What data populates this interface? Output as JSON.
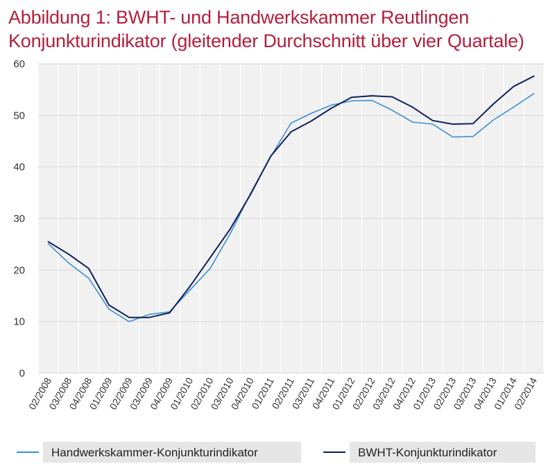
{
  "title_line1": "Abbildung 1: BWHT- und Handwerkskammer  Reutlingen",
  "title_line2": "Konjunkturindikator (gleitender Durchschnitt über vier Quartale)",
  "colors": {
    "title": "#b41f3d",
    "series1": "#3a8fd0",
    "series2": "#101f5a",
    "grid": "#d8d8d8",
    "plot_bg": "#f1f1f2",
    "legend_bg": "#e6e6e6"
  },
  "chart_data": {
    "type": "line",
    "categories": [
      "02/2008",
      "03/2008",
      "04/2008",
      "01/2009",
      "02/2009",
      "03/2009",
      "04/2009",
      "01/2010",
      "02/2010",
      "03/2010",
      "04/2010",
      "01/2011",
      "02/2011",
      "03/2011",
      "04/2011",
      "01/2012",
      "02/2012",
      "03/2012",
      "04/2012",
      "01/2013",
      "02/2013",
      "03/2013",
      "04/2013",
      "01/2014",
      "02/2014"
    ],
    "ylim": [
      0,
      60
    ],
    "yticks": [
      0,
      10,
      20,
      30,
      40,
      50,
      60
    ],
    "grid": true,
    "legend_position": "bottom",
    "series": [
      {
        "name": "Handwerkskammer-Konjunkturindikator",
        "values": [
          25.1,
          21.4,
          18.4,
          12.4,
          10.0,
          11.4,
          11.9,
          16.1,
          20.3,
          27.1,
          34.9,
          42.0,
          48.5,
          50.4,
          52.0,
          52.8,
          52.9,
          51.0,
          48.7,
          48.3,
          45.8,
          45.9,
          49.1,
          51.6,
          54.2
        ]
      },
      {
        "name": "BWHT-Konjunkturindikator",
        "values": [
          25.5,
          23.1,
          20.3,
          13.2,
          10.8,
          10.8,
          11.7,
          16.8,
          22.4,
          28.0,
          34.7,
          42.1,
          46.8,
          48.9,
          51.4,
          53.5,
          53.8,
          53.6,
          51.6,
          49.0,
          48.3,
          48.4,
          52.2,
          55.6,
          57.6
        ]
      }
    ]
  }
}
